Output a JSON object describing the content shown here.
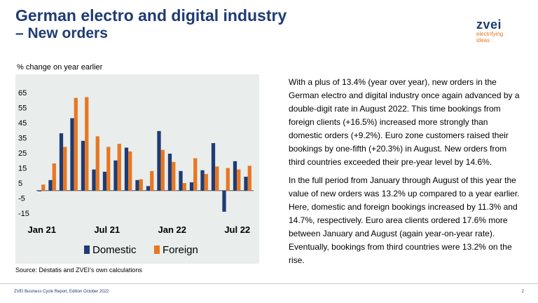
{
  "slide": {
    "title": "German electro and digital industry",
    "subtitle": "– New orders",
    "logo": {
      "word": "zvei",
      "tagline_1": "electrifying",
      "tagline_2": "ideas"
    },
    "source": "Source: Destatis and ZVEI’s own calculations",
    "footer": "ZVEI Business Cycle Report, Edition October 2022",
    "page_number": "2",
    "paragraphs": [
      "With a plus of 13.4% (year over year), new orders in the German electro and digital industry once again advanced by a double-digit rate in August 2022. This time bookings from foreign clients (+16.5%) increased more strongly than domestic orders (+9.2%). Euro zone customers raised their bookings by one-fifth (+20.3%) in August. New orders from third countries exceeded their pre-year level by 14.6%.",
      "In the full period from January through August of this year the value of new orders was 13.2% up compared to a year earlier. Here, domestic and foreign bookings increased by 11.3% and 14.7%, respectively. Euro area clients ordered 17.6% more between January and August (again year-on-year rate). Eventually, bookings from third countries were 13.2% on the rise."
    ]
  },
  "chart_data": {
    "type": "bar",
    "ylabel": "% change on year earlier",
    "ylim": [
      -15,
      65
    ],
    "yticks": [
      65,
      55,
      45,
      35,
      25,
      15,
      5,
      -5,
      -15
    ],
    "ytick_labels": [
      "65",
      "55",
      "45",
      "35",
      "25",
      "15",
      "5",
      "-5",
      "-15"
    ],
    "categories": [
      "Jan 21",
      "Feb 21",
      "Mar 21",
      "Apr 21",
      "May 21",
      "Jun 21",
      "Jul 21",
      "Aug 21",
      "Sep 21",
      "Oct 21",
      "Nov 21",
      "Dec 21",
      "Jan 22",
      "Feb 22",
      "Mar 22",
      "Apr 22",
      "May 22",
      "Jun 22",
      "Jul 22",
      "Aug 22"
    ],
    "xtick_labels": [
      {
        "index": 0,
        "label": "Jan 21"
      },
      {
        "index": 6,
        "label": "Jul 21"
      },
      {
        "index": 12,
        "label": "Jan 22"
      },
      {
        "index": 18,
        "label": "Jul 22"
      }
    ],
    "series": [
      {
        "name": "Domestic",
        "color": "#1f3b73",
        "values": [
          -0.5,
          7,
          38,
          48,
          33,
          14,
          12.5,
          20,
          28.5,
          7,
          3,
          39.5,
          24.5,
          13,
          5.5,
          13.5,
          31.5,
          -14,
          19.5,
          9.2
        ]
      },
      {
        "name": "Foreign",
        "color": "#e87722",
        "values": [
          4,
          18,
          29,
          61.5,
          62,
          36,
          29,
          31,
          26,
          7.5,
          13,
          27,
          19,
          5,
          21.5,
          11,
          16,
          15,
          14,
          16.5
        ]
      }
    ],
    "legend_position": "bottom",
    "grid": false
  }
}
